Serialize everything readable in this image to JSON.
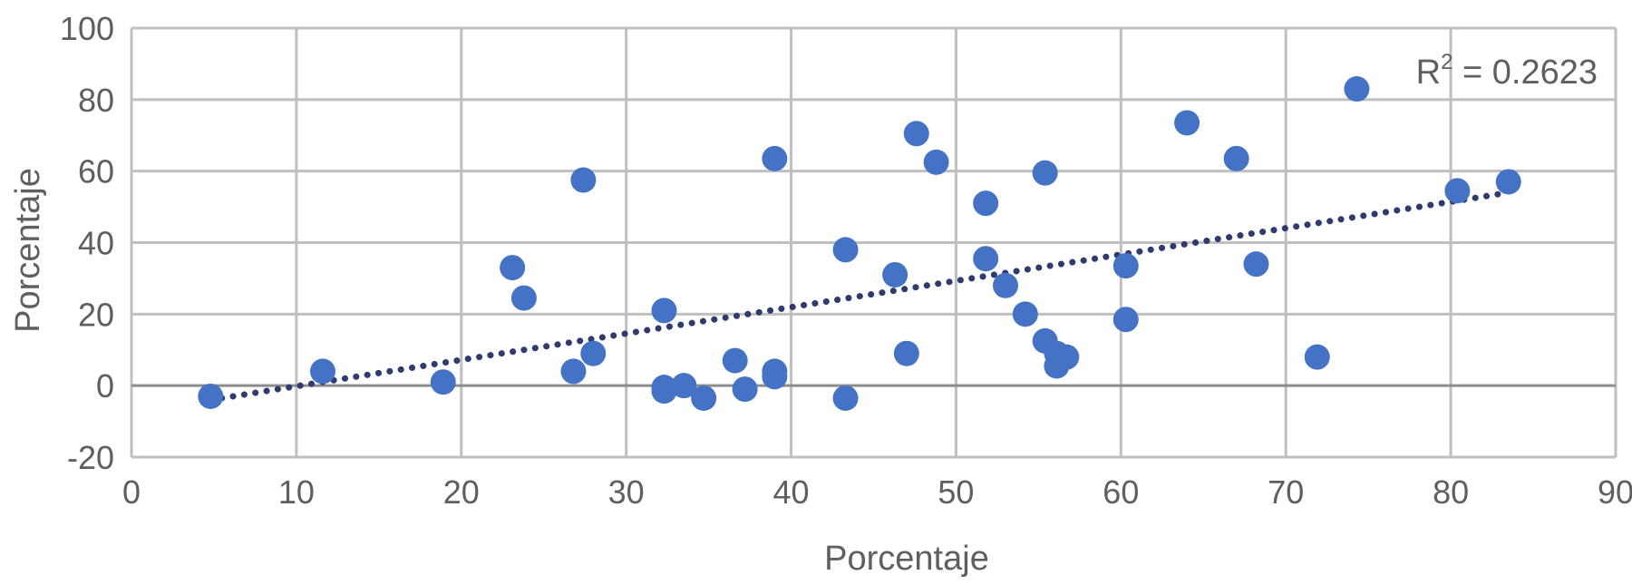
{
  "chart_data": {
    "type": "scatter",
    "xlabel": "Porcentaje",
    "ylabel": "Porcentaje",
    "xlim": [
      0,
      90
    ],
    "ylim": [
      -20,
      100
    ],
    "xticks": [
      0,
      10,
      20,
      30,
      40,
      50,
      60,
      70,
      80,
      90
    ],
    "yticks": [
      -20,
      0,
      20,
      40,
      60,
      80,
      100
    ],
    "grid": true,
    "r2_prefix": "R",
    "r2_exponent": "2",
    "r2_value": " = 0.2623",
    "trendline": {
      "style": "dotted",
      "x_start": 4.8,
      "y_start": -4,
      "x_end": 83.5,
      "y_end": 54
    },
    "colors": {
      "points": "#4472c4",
      "trendline": "#2f3a6e",
      "grid": "#bfbfbf",
      "zero_line": "#8c8c8c",
      "text": "#5f5f5f"
    },
    "series": [
      {
        "points": [
          [
            4.8,
            -3
          ],
          [
            11.6,
            4
          ],
          [
            18.9,
            1
          ],
          [
            23.1,
            33
          ],
          [
            23.8,
            24.5
          ],
          [
            26.8,
            4
          ],
          [
            27.4,
            57.5
          ],
          [
            28.0,
            9
          ],
          [
            32.3,
            21
          ],
          [
            32.3,
            -0.5
          ],
          [
            32.3,
            -1.5
          ],
          [
            33.5,
            0
          ],
          [
            34.7,
            -3.5
          ],
          [
            36.6,
            7
          ],
          [
            37.2,
            -1
          ],
          [
            39.0,
            63.5
          ],
          [
            39.0,
            4
          ],
          [
            39.0,
            2.5
          ],
          [
            43.3,
            38
          ],
          [
            43.3,
            -3.5
          ],
          [
            46.3,
            31
          ],
          [
            47.0,
            9
          ],
          [
            47.6,
            70.5
          ],
          [
            48.8,
            62.5
          ],
          [
            51.8,
            51
          ],
          [
            51.8,
            35.5
          ],
          [
            53.0,
            28
          ],
          [
            54.2,
            20
          ],
          [
            55.4,
            59.5
          ],
          [
            55.4,
            12.5
          ],
          [
            56.1,
            9
          ],
          [
            56.1,
            5.5
          ],
          [
            56.7,
            8
          ],
          [
            60.3,
            33.5
          ],
          [
            60.3,
            18.5
          ],
          [
            64.0,
            73.5
          ],
          [
            67.0,
            63.5
          ],
          [
            68.2,
            34
          ],
          [
            71.9,
            8
          ],
          [
            74.3,
            83
          ],
          [
            80.4,
            54.5
          ],
          [
            83.5,
            57
          ]
        ]
      }
    ]
  }
}
